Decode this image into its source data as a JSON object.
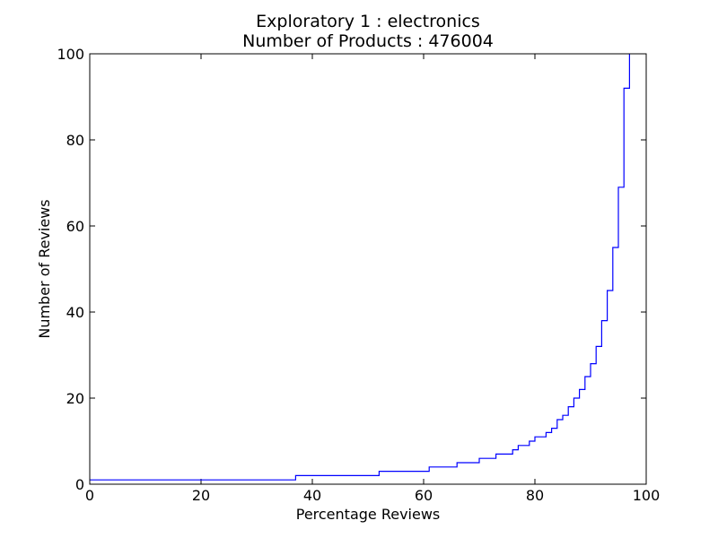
{
  "chart_data": {
    "type": "line",
    "step": true,
    "title": "Exploratory 1 : electronics",
    "subtitle": "Number of Products : 476004",
    "xlabel": "Percentage Reviews",
    "ylabel": "Number of Reviews",
    "xlim": [
      0,
      100
    ],
    "ylim": [
      0,
      100
    ],
    "x_ticks": [
      0,
      20,
      40,
      60,
      80,
      100
    ],
    "y_ticks": [
      0,
      20,
      40,
      60,
      80,
      100
    ],
    "x_tick_labels": [
      "0",
      "20",
      "40",
      "60",
      "80",
      "100"
    ],
    "y_tick_labels": [
      "0",
      "20",
      "40",
      "60",
      "80",
      "100"
    ],
    "grid": false,
    "line_color": "#0000ff",
    "series": [
      {
        "x": [
          0,
          37,
          52,
          61,
          66,
          70,
          73,
          76,
          77,
          79,
          80,
          82,
          83,
          84,
          85,
          86,
          87,
          88,
          89,
          90,
          91,
          92,
          93,
          94,
          95,
          96,
          97
        ],
        "y": [
          1,
          2,
          3,
          4,
          5,
          6,
          7,
          8,
          9,
          10,
          11,
          12,
          13,
          15,
          16,
          18,
          20,
          22,
          25,
          28,
          32,
          38,
          45,
          55,
          69,
          92,
          100
        ]
      }
    ]
  }
}
